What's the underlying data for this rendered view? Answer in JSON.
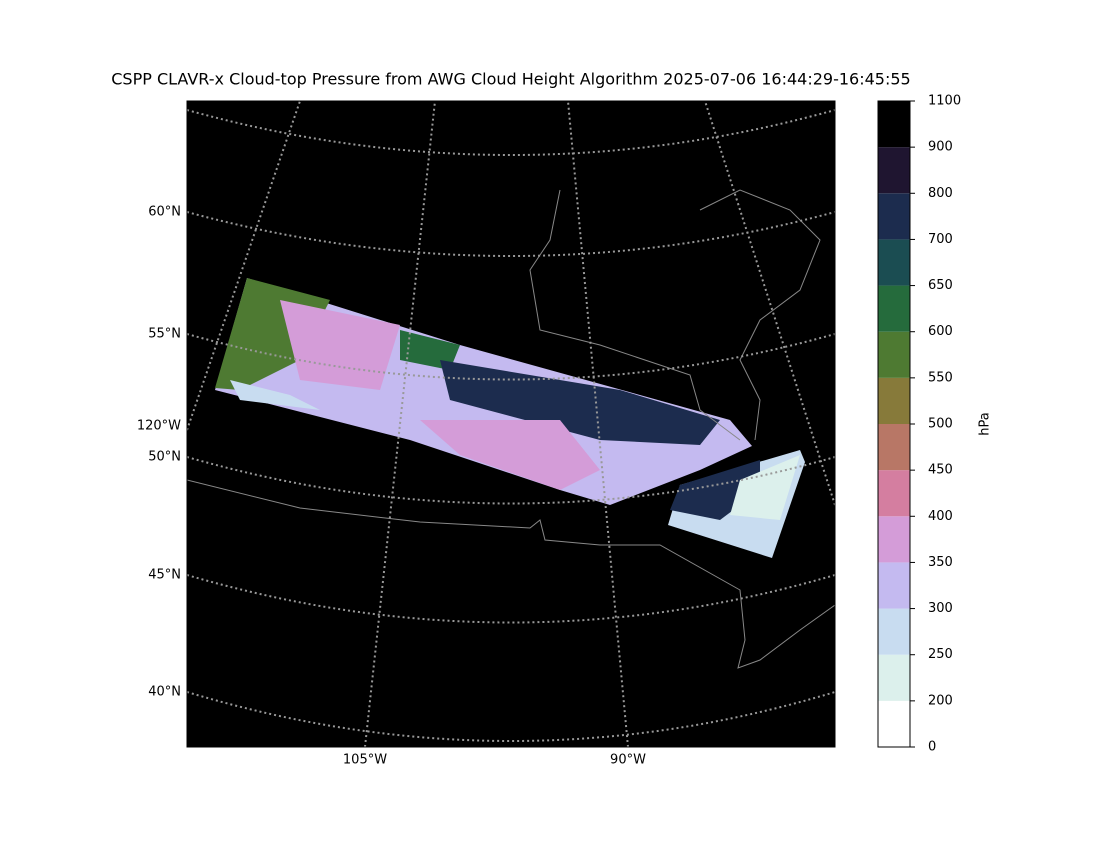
{
  "chart_data": {
    "type": "map",
    "title": "CSPP CLAVR-x Cloud-top Pressure from AWG Cloud Height Algorithm 2025-07-06 16:44:29-16:45:55",
    "lat_labels": [
      "60°N",
      "55°N",
      "50°N",
      "45°N",
      "40°N"
    ],
    "lon_labels": [
      "120°W",
      "105°W",
      "90°W"
    ],
    "colorbar": {
      "label": "hPa",
      "boundaries": [
        0,
        200,
        250,
        300,
        350,
        400,
        450,
        500,
        550,
        600,
        650,
        700,
        800,
        900,
        1100
      ],
      "colors": [
        "#ffffff",
        "#dcf0ec",
        "#c8dcf0",
        "#c4baf0",
        "#d49cd8",
        "#d47ea0",
        "#b87766",
        "#877a3a",
        "#4e7a32",
        "#256b3c",
        "#1b4d52",
        "#1c2c4e",
        "#1f1530",
        "#000000"
      ]
    }
  }
}
